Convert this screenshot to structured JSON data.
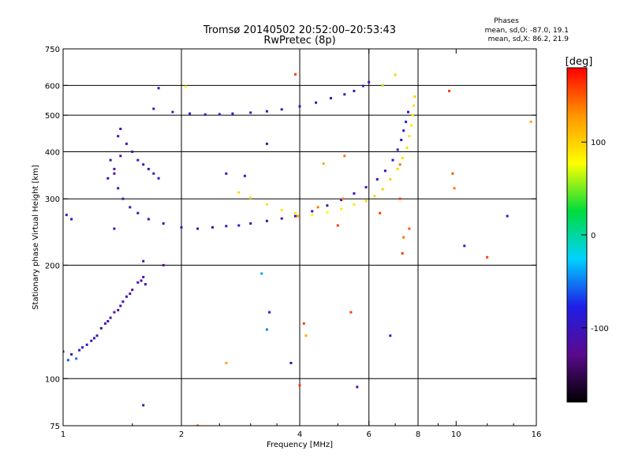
{
  "chart_data": {
    "type": "scatter",
    "title": "Tromsø 20140502 20:52:00–20:53:43",
    "subtitle": "RwPretec (8p)",
    "stats": {
      "heading": "Phases",
      "line1": "mean, sd,O: -87.0, 19.1",
      "line2": "mean, sd,X:  86.2, 21.9"
    },
    "xlabel": "Frequency [MHz]",
    "ylabel": "Stationary phase Virtual Height [km]",
    "x_scale": "log",
    "y_scale": "log",
    "xlim": [
      1,
      16
    ],
    "ylim": [
      75,
      750
    ],
    "x_ticks": [
      "1",
      "2",
      "4",
      "6",
      "8",
      "10",
      "16"
    ],
    "x_tick_values": [
      1,
      2,
      4,
      6,
      8,
      10,
      16
    ],
    "y_ticks": [
      "750",
      "600",
      "500",
      "400",
      "300",
      "200",
      "100",
      "75"
    ],
    "y_tick_values": [
      750,
      600,
      500,
      400,
      300,
      200,
      100,
      75
    ],
    "x_grid": [
      2,
      4,
      6,
      8
    ],
    "y_grid": [
      600,
      500,
      400,
      300,
      200,
      100
    ],
    "grid": true,
    "colorbar": {
      "label": "[deg]",
      "range": [
        -180,
        180
      ],
      "ticks": [
        "100",
        "0",
        "-100"
      ],
      "tick_values": [
        100,
        0,
        -100
      ],
      "stops": [
        "#000000",
        "#5a0a8c",
        "#1e1ee6",
        "#00d2ff",
        "#00dc3c",
        "#ffff00",
        "#ff9600",
        "#ff0000"
      ]
    },
    "series": [
      {
        "trace": "low_E_F1",
        "points": [
          [
            1.0,
            118,
            -110
          ],
          [
            1.05,
            116,
            -105
          ],
          [
            1.1,
            119,
            -95
          ],
          [
            1.15,
            123,
            -100
          ],
          [
            1.2,
            128,
            -108
          ],
          [
            1.25,
            136,
            -112
          ],
          [
            1.3,
            142,
            -110
          ],
          [
            1.35,
            150,
            -112
          ],
          [
            1.4,
            156,
            -108
          ],
          [
            1.45,
            165,
            -110
          ],
          [
            1.5,
            172,
            -112
          ],
          [
            1.55,
            180,
            -108
          ],
          [
            1.6,
            186,
            -110
          ],
          [
            1.03,
            112,
            -60
          ],
          [
            1.08,
            113,
            -55
          ],
          [
            1.12,
            121,
            -90
          ],
          [
            1.18,
            126,
            -100
          ],
          [
            1.28,
            140,
            -110
          ],
          [
            1.38,
            152,
            -115
          ],
          [
            1.48,
            168,
            -112
          ],
          [
            1.58,
            182,
            -110
          ],
          [
            1.62,
            178,
            -105
          ],
          [
            1.42,
            160,
            -108
          ],
          [
            1.32,
            145,
            -112
          ],
          [
            1.22,
            130,
            -112
          ]
        ]
      },
      {
        "trace": "F2_O_mode",
        "points": [
          [
            1.32,
            380,
            -115
          ],
          [
            1.35,
            350,
            -112
          ],
          [
            1.38,
            320,
            -110
          ],
          [
            1.42,
            300,
            -110
          ],
          [
            1.48,
            285,
            -108
          ],
          [
            1.55,
            275,
            -108
          ],
          [
            1.65,
            265,
            -106
          ],
          [
            1.8,
            258,
            -104
          ],
          [
            2.0,
            252,
            -100
          ],
          [
            2.2,
            250,
            -98
          ],
          [
            2.4,
            252,
            -92
          ],
          [
            2.6,
            254,
            -92
          ],
          [
            2.8,
            255,
            -95
          ],
          [
            3.0,
            258,
            -100
          ],
          [
            3.3,
            262,
            -105
          ],
          [
            3.6,
            266,
            -108
          ],
          [
            3.9,
            270,
            -110
          ],
          [
            4.3,
            278,
            -108
          ],
          [
            4.7,
            288,
            -108
          ],
          [
            5.1,
            298,
            -106
          ],
          [
            5.5,
            310,
            -106
          ],
          [
            5.9,
            322,
            -104
          ],
          [
            6.3,
            338,
            -104
          ],
          [
            6.6,
            356,
            -102
          ],
          [
            6.9,
            380,
            -100
          ],
          [
            7.1,
            405,
            -98
          ],
          [
            7.25,
            430,
            -96
          ],
          [
            7.35,
            455,
            -94
          ],
          [
            7.45,
            480,
            -92
          ],
          [
            7.55,
            510,
            -90
          ]
        ]
      },
      {
        "trace": "F2_X_mode",
        "points": [
          [
            2.8,
            312,
            95
          ],
          [
            3.0,
            302,
            95
          ],
          [
            3.3,
            290,
            92
          ],
          [
            3.6,
            280,
            88
          ],
          [
            3.9,
            275,
            85
          ],
          [
            4.3,
            272,
            80
          ],
          [
            4.7,
            276,
            78
          ],
          [
            5.1,
            282,
            85
          ],
          [
            5.5,
            290,
            90
          ],
          [
            5.9,
            296,
            98
          ],
          [
            6.2,
            305,
            100
          ],
          [
            6.5,
            318,
            102
          ],
          [
            6.8,
            338,
            100
          ],
          [
            7.1,
            360,
            98
          ],
          [
            7.3,
            385,
            95
          ],
          [
            7.5,
            410,
            95
          ],
          [
            7.6,
            440,
            92
          ],
          [
            7.7,
            470,
            90
          ],
          [
            7.75,
            500,
            88
          ],
          [
            7.8,
            530,
            92
          ],
          [
            7.85,
            560,
            100
          ]
        ]
      },
      {
        "trace": "F_layer_upper",
        "points": [
          [
            1.7,
            520,
            -95
          ],
          [
            1.9,
            510,
            -95
          ],
          [
            2.1,
            505,
            -95
          ],
          [
            2.3,
            502,
            -92
          ],
          [
            2.5,
            503,
            -90
          ],
          [
            2.7,
            505,
            -95
          ],
          [
            3.0,
            508,
            -105
          ],
          [
            3.3,
            512,
            -110
          ],
          [
            3.6,
            518,
            -112
          ],
          [
            4.0,
            528,
            -110
          ],
          [
            4.4,
            540,
            -110
          ],
          [
            4.8,
            555,
            -108
          ],
          [
            5.2,
            568,
            -108
          ],
          [
            5.5,
            580,
            -106
          ],
          [
            5.8,
            598,
            -104
          ],
          [
            6.0,
            612,
            -102
          ]
        ]
      },
      {
        "trace": "group_1p5_MHz",
        "points": [
          [
            1.3,
            340,
            -115
          ],
          [
            1.35,
            360,
            -112
          ],
          [
            1.4,
            390,
            -115
          ],
          [
            1.45,
            420,
            -112
          ],
          [
            1.5,
            400,
            -110
          ],
          [
            1.55,
            380,
            -108
          ],
          [
            1.6,
            370,
            -106
          ],
          [
            1.65,
            360,
            -105
          ],
          [
            1.7,
            350,
            -105
          ],
          [
            1.75,
            340,
            -100
          ],
          [
            1.4,
            460,
            -115
          ],
          [
            1.38,
            440,
            -112
          ]
        ]
      },
      {
        "trace": "scattered",
        "points": [
          [
            1.75,
            590,
            -100
          ],
          [
            2.05,
            595,
            80
          ],
          [
            3.9,
            642,
            160
          ],
          [
            6.5,
            600,
            60
          ],
          [
            7.0,
            640,
            100
          ],
          [
            9.6,
            580,
            160
          ],
          [
            10.5,
            225,
            -90
          ],
          [
            12.0,
            210,
            160
          ],
          [
            13.5,
            270,
            -100
          ],
          [
            15.5,
            480,
            120
          ],
          [
            9.8,
            350,
            150
          ],
          [
            9.9,
            320,
            140
          ],
          [
            5.2,
            390,
            140
          ],
          [
            4.6,
            372,
            120
          ],
          [
            3.3,
            420,
            -110
          ],
          [
            2.6,
            350,
            -80
          ],
          [
            2.9,
            345,
            -90
          ],
          [
            3.2,
            190,
            -40
          ],
          [
            3.35,
            150,
            -80
          ],
          [
            3.3,
            135,
            -50
          ],
          [
            4.15,
            130,
            120
          ],
          [
            4.1,
            140,
            160
          ],
          [
            5.4,
            150,
            160
          ],
          [
            7.3,
            215,
            160
          ],
          [
            6.8,
            130,
            -100
          ],
          [
            5.6,
            95,
            -120
          ],
          [
            4.0,
            96,
            160
          ],
          [
            3.8,
            110,
            -110
          ],
          [
            2.6,
            110,
            120
          ],
          [
            2.2,
            75,
            150
          ],
          [
            1.6,
            85,
            -110
          ],
          [
            1.05,
            265,
            -100
          ],
          [
            1.02,
            272,
            -90
          ],
          [
            1.6,
            205,
            -100
          ],
          [
            1.8,
            200,
            -120
          ],
          [
            7.2,
            370,
            140
          ],
          [
            7.6,
            250,
            150
          ],
          [
            7.2,
            300,
            160
          ],
          [
            6.4,
            275,
            160
          ],
          [
            5.0,
            255,
            160
          ],
          [
            3.95,
            270,
            130
          ],
          [
            4.45,
            285,
            140
          ],
          [
            5.15,
            300,
            140
          ],
          [
            7.35,
            237,
            140
          ],
          [
            1.35,
            250,
            -90
          ]
        ]
      }
    ]
  }
}
